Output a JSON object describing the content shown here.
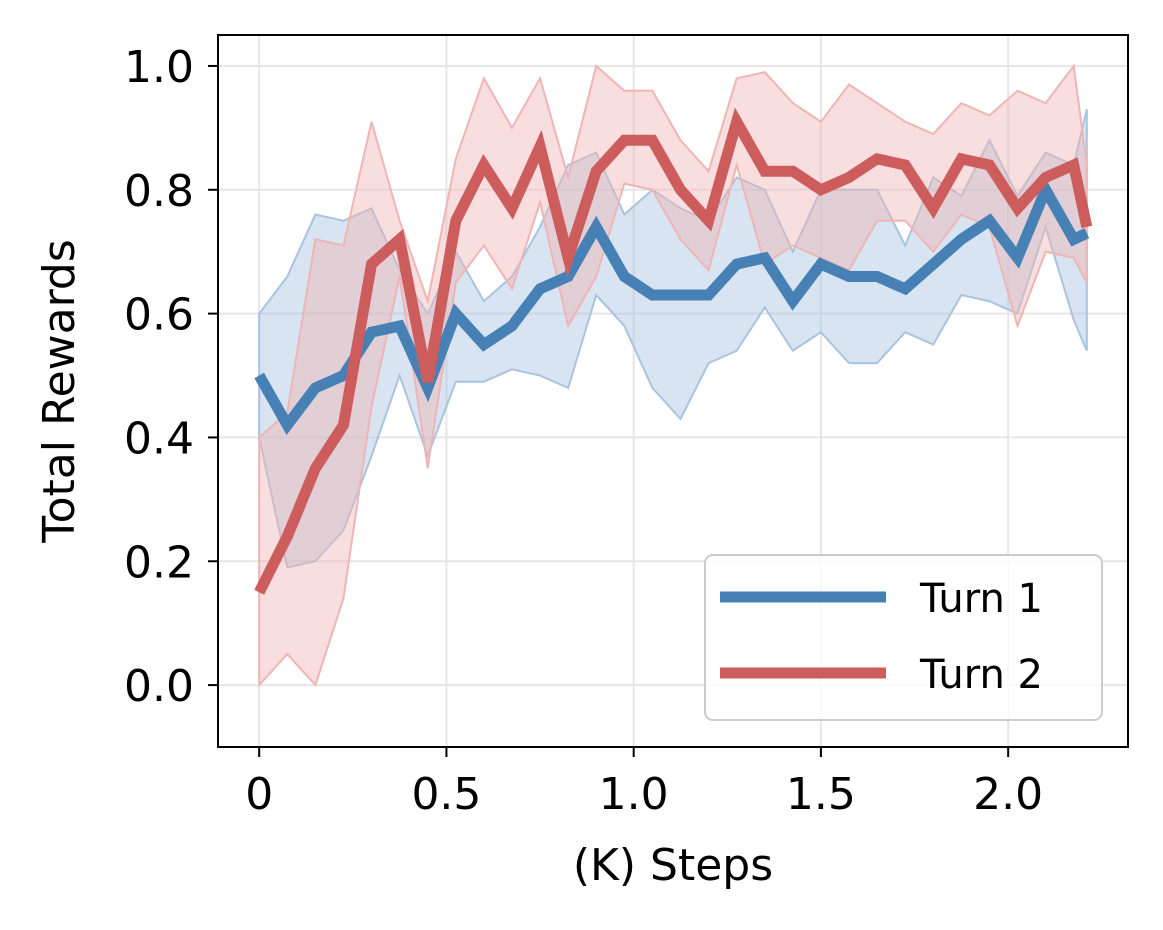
{
  "chart_data": {
    "type": "line",
    "title": "",
    "xlabel": "(K) Steps",
    "ylabel": "Total Rewards",
    "xlim": [
      -0.11,
      2.32
    ],
    "ylim": [
      -0.1,
      1.05
    ],
    "xticks": [
      0,
      0.5,
      1.0,
      1.5,
      2.0
    ],
    "xtick_labels": [
      "0",
      "0.5",
      "1.0",
      "1.5",
      "2.0"
    ],
    "yticks": [
      0.0,
      0.2,
      0.4,
      0.6,
      0.8,
      1.0
    ],
    "ytick_labels": [
      "0.0",
      "0.2",
      "0.4",
      "0.6",
      "0.8",
      "1.0"
    ],
    "grid": true,
    "legend_position": "bottom-right",
    "x": [
      0,
      0.075,
      0.15,
      0.225,
      0.3,
      0.375,
      0.45,
      0.525,
      0.6,
      0.675,
      0.75,
      0.825,
      0.9,
      0.975,
      1.05,
      1.125,
      1.2,
      1.275,
      1.35,
      1.425,
      1.5,
      1.575,
      1.65,
      1.725,
      1.8,
      1.875,
      1.95,
      2.025,
      2.1,
      2.175,
      2.21
    ],
    "series": [
      {
        "name": "Turn 1",
        "color": "#4680b4",
        "band_color": "#a9c4df",
        "values": [
          0.5,
          0.42,
          0.48,
          0.5,
          0.57,
          0.58,
          0.48,
          0.6,
          0.55,
          0.58,
          0.64,
          0.66,
          0.74,
          0.66,
          0.63,
          0.63,
          0.63,
          0.68,
          0.69,
          0.62,
          0.68,
          0.66,
          0.66,
          0.64,
          0.68,
          0.72,
          0.75,
          0.69,
          0.8,
          0.72,
          0.73
        ],
        "upper": [
          0.6,
          0.66,
          0.76,
          0.75,
          0.77,
          0.67,
          0.6,
          0.7,
          0.62,
          0.66,
          0.74,
          0.84,
          0.86,
          0.76,
          0.8,
          0.77,
          0.75,
          0.82,
          0.8,
          0.7,
          0.8,
          0.8,
          0.8,
          0.71,
          0.82,
          0.79,
          0.88,
          0.79,
          0.86,
          0.84,
          0.93
        ],
        "lower": [
          0.4,
          0.19,
          0.2,
          0.25,
          0.37,
          0.5,
          0.37,
          0.49,
          0.49,
          0.51,
          0.5,
          0.48,
          0.63,
          0.58,
          0.48,
          0.43,
          0.52,
          0.54,
          0.61,
          0.54,
          0.57,
          0.52,
          0.52,
          0.57,
          0.55,
          0.63,
          0.62,
          0.6,
          0.74,
          0.59,
          0.54
        ]
      },
      {
        "name": "Turn 2",
        "color": "#cd5c5c",
        "band_color": "#efb5b5",
        "values": [
          0.15,
          0.24,
          0.35,
          0.42,
          0.68,
          0.72,
          0.49,
          0.75,
          0.84,
          0.77,
          0.87,
          0.69,
          0.83,
          0.88,
          0.88,
          0.8,
          0.75,
          0.91,
          0.83,
          0.83,
          0.8,
          0.82,
          0.85,
          0.84,
          0.77,
          0.85,
          0.84,
          0.77,
          0.82,
          0.84,
          0.74
        ],
        "upper": [
          0.4,
          0.44,
          0.72,
          0.71,
          0.91,
          0.75,
          0.62,
          0.85,
          0.98,
          0.9,
          0.98,
          0.82,
          1.0,
          0.96,
          0.96,
          0.88,
          0.83,
          0.98,
          0.99,
          0.94,
          0.91,
          0.97,
          0.94,
          0.91,
          0.89,
          0.94,
          0.92,
          0.96,
          0.94,
          1.0,
          0.84
        ],
        "lower": [
          0.0,
          0.05,
          0.0,
          0.14,
          0.45,
          0.66,
          0.35,
          0.65,
          0.71,
          0.64,
          0.78,
          0.58,
          0.66,
          0.81,
          0.8,
          0.72,
          0.67,
          0.84,
          0.68,
          0.71,
          0.69,
          0.67,
          0.75,
          0.75,
          0.7,
          0.76,
          0.74,
          0.58,
          0.7,
          0.69,
          0.65
        ]
      }
    ]
  }
}
